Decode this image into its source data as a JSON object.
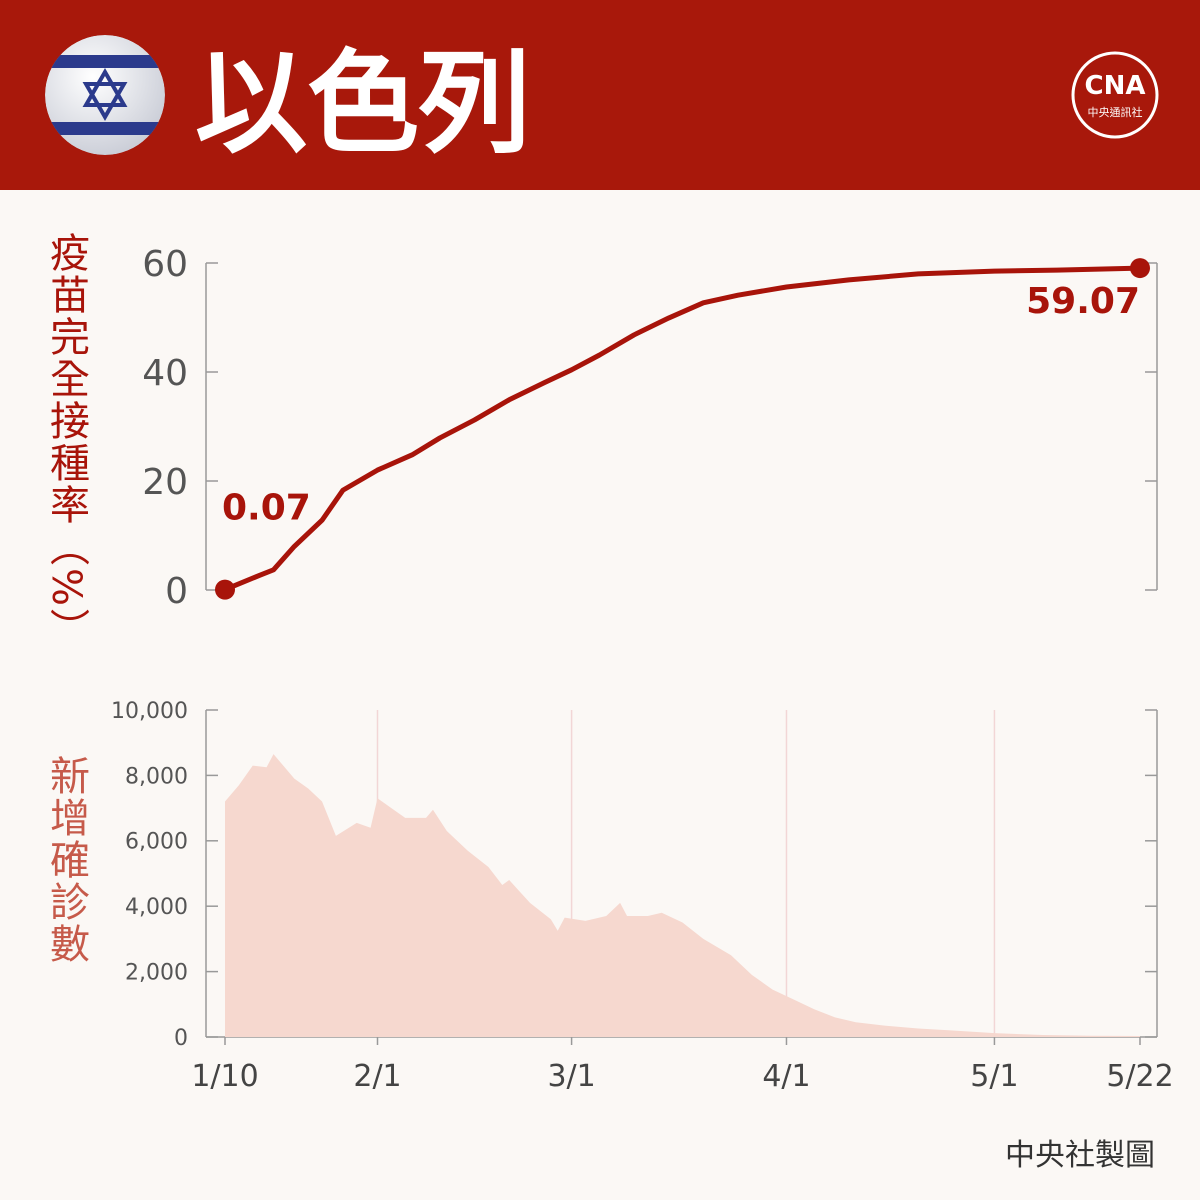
{
  "header": {
    "title": "以色列",
    "logo": "CNA",
    "logo_subtitle": "中央通訊社"
  },
  "footer": "中央社製圖",
  "chart_data": [
    {
      "type": "line",
      "y_label": "疫苗完全接種率（%）",
      "color": "#a8140a",
      "xlim": [
        "1/10",
        "5/22"
      ],
      "x": [
        "1/10",
        "1/15",
        "1/17",
        "1/20",
        "1/24",
        "1/27",
        "2/1",
        "2/6",
        "2/10",
        "2/15",
        "2/20",
        "2/25",
        "3/1",
        "3/5",
        "3/10",
        "3/15",
        "3/20",
        "3/25",
        "4/1",
        "4/10",
        "4/20",
        "5/1",
        "5/10",
        "5/22"
      ],
      "values": [
        0.07,
        2.7,
        3.7,
        8,
        12.8,
        18.3,
        22,
        24.8,
        27.9,
        31.2,
        34.9,
        38,
        40.4,
        43.1,
        46.8,
        49.9,
        52.7,
        54.1,
        55.6,
        56.9,
        58,
        58.5,
        58.7,
        59.07
      ],
      "ylim": [
        0,
        60
      ],
      "yticks": [
        0,
        20,
        40,
        60
      ]
    },
    {
      "type": "area",
      "y_label": "新增確診數",
      "color": "#f6d8cf",
      "label_color": "#c65a4a",
      "xlim": [
        "1/10",
        "5/22"
      ],
      "x": [
        "1/10",
        "1/12",
        "1/14",
        "1/16",
        "1/17",
        "1/20",
        "1/22",
        "1/24",
        "1/26",
        "1/29",
        "1/31",
        "2/1",
        "2/3",
        "2/5",
        "2/8",
        "2/9",
        "2/11",
        "2/14",
        "2/17",
        "2/19",
        "2/20",
        "2/23",
        "2/26",
        "2/27",
        "2/28",
        "3/3",
        "3/6",
        "3/8",
        "3/9",
        "3/12",
        "3/14",
        "3/17",
        "3/20",
        "3/24",
        "3/27",
        "3/30",
        "4/2",
        "4/5",
        "4/8",
        "4/11",
        "4/15",
        "4/20",
        "4/25",
        "5/1",
        "5/8",
        "5/15",
        "5/22"
      ],
      "values": [
        7200,
        7700,
        8300,
        8250,
        8650,
        7900,
        7600,
        7200,
        6150,
        6550,
        6400,
        7300,
        7000,
        6700,
        6700,
        6950,
        6300,
        5700,
        5200,
        4650,
        4800,
        4100,
        3600,
        3250,
        3650,
        3550,
        3700,
        4100,
        3700,
        3700,
        3800,
        3500,
        3000,
        2500,
        1900,
        1450,
        1150,
        850,
        600,
        450,
        350,
        260,
        200,
        120,
        60,
        40,
        30
      ],
      "ylim": [
        0,
        10000
      ],
      "yticks": [
        0,
        {
          "value": 2000,
          "label": "2,000"
        },
        {
          "value": 4000,
          "label": "4,000"
        },
        {
          "value": 6000,
          "label": "6,000"
        },
        {
          "value": 8000,
          "label": "8,000"
        },
        {
          "value": 10000,
          "label": "10,000"
        }
      ],
      "xticks": [
        "1/10",
        "2/1",
        "3/1",
        "4/1",
        "5/1",
        "5/22"
      ],
      "grid": true
    }
  ]
}
